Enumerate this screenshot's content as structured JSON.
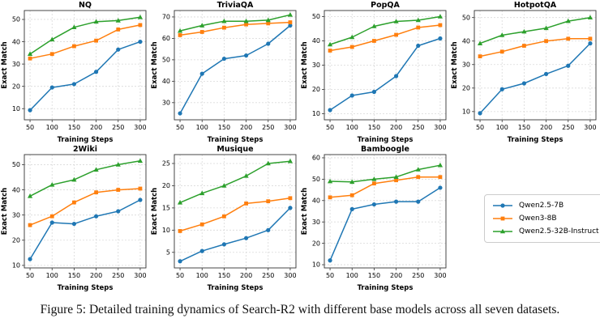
{
  "figure": {
    "caption": "Figure 5: Detailed training dynamics of Search-R2 with different base models across all seven datasets."
  },
  "legend": {
    "position": "bottom-right",
    "entries": [
      {
        "label": "Qwen2.5-7B",
        "color": "#1f77b4",
        "marker": "circle"
      },
      {
        "label": "Qwen3-8B",
        "color": "#ff7f0e",
        "marker": "square"
      },
      {
        "label": "Qwen2.5-32B-Instruct",
        "color": "#2ca02c",
        "marker": "triangle"
      }
    ]
  },
  "chart_data": [
    {
      "type": "line",
      "title": "NQ",
      "xlabel": "Training Steps",
      "ylabel": "Exact Match",
      "x": [
        50,
        100,
        150,
        200,
        250,
        300
      ],
      "xticks": [
        50,
        100,
        150,
        200,
        250,
        300
      ],
      "yticks": [
        10,
        20,
        30,
        40,
        50
      ],
      "xlim": [
        37,
        313
      ],
      "ylim": [
        5,
        54
      ],
      "grid": true,
      "series": [
        {
          "name": "Qwen2.5-7B",
          "color": "#1f77b4",
          "marker": "circle",
          "values": [
            9.3,
            19.5,
            21.0,
            26.5,
            36.5,
            40.0
          ]
        },
        {
          "name": "Qwen3-8B",
          "color": "#ff7f0e",
          "marker": "square",
          "values": [
            32.5,
            34.5,
            38.0,
            40.5,
            45.5,
            47.5
          ]
        },
        {
          "name": "Qwen2.5-32B-Instruct",
          "color": "#2ca02c",
          "marker": "triangle",
          "values": [
            34.5,
            41.0,
            46.5,
            49.0,
            49.5,
            51.0
          ]
        }
      ]
    },
    {
      "type": "line",
      "title": "TriviaQA",
      "xlabel": "Training Steps",
      "ylabel": "Exact Match",
      "x": [
        50,
        100,
        150,
        200,
        250,
        300
      ],
      "xticks": [
        50,
        100,
        150,
        200,
        250,
        300
      ],
      "yticks": [
        30,
        40,
        50,
        60,
        70
      ],
      "xlim": [
        37,
        313
      ],
      "ylim": [
        22,
        73
      ],
      "grid": true,
      "series": [
        {
          "name": "Qwen2.5-7B",
          "color": "#1f77b4",
          "marker": "circle",
          "values": [
            25.0,
            43.5,
            50.5,
            52.0,
            57.5,
            66.0
          ]
        },
        {
          "name": "Qwen3-8B",
          "color": "#ff7f0e",
          "marker": "square",
          "values": [
            61.5,
            63.0,
            65.0,
            66.5,
            67.0,
            67.5
          ]
        },
        {
          "name": "Qwen2.5-32B-Instruct",
          "color": "#2ca02c",
          "marker": "triangle",
          "values": [
            63.5,
            66.0,
            68.0,
            68.0,
            68.5,
            71.0
          ]
        }
      ]
    },
    {
      "type": "line",
      "title": "PopQA",
      "xlabel": "Training Steps",
      "ylabel": "Exact Match",
      "x": [
        50,
        100,
        150,
        200,
        250,
        300
      ],
      "xticks": [
        50,
        100,
        150,
        200,
        250,
        300
      ],
      "yticks": [
        10,
        20,
        30,
        40,
        50
      ],
      "xlim": [
        37,
        313
      ],
      "ylim": [
        7.5,
        52.5
      ],
      "grid": true,
      "series": [
        {
          "name": "Qwen2.5-7B",
          "color": "#1f77b4",
          "marker": "circle",
          "values": [
            11.5,
            17.5,
            19.0,
            25.5,
            38.0,
            41.0
          ]
        },
        {
          "name": "Qwen3-8B",
          "color": "#ff7f0e",
          "marker": "square",
          "values": [
            36.0,
            37.5,
            40.0,
            42.5,
            45.5,
            46.5
          ]
        },
        {
          "name": "Qwen2.5-32B-Instruct",
          "color": "#2ca02c",
          "marker": "triangle",
          "values": [
            38.5,
            41.5,
            46.0,
            48.0,
            48.5,
            50.0
          ]
        }
      ]
    },
    {
      "type": "line",
      "title": "HotpotQA",
      "xlabel": "Training Steps",
      "ylabel": "Exact Match",
      "x": [
        50,
        100,
        150,
        200,
        250,
        300
      ],
      "xticks": [
        50,
        100,
        150,
        200,
        250,
        300
      ],
      "yticks": [
        10,
        20,
        30,
        40,
        50
      ],
      "xlim": [
        37,
        313
      ],
      "ylim": [
        6.5,
        53
      ],
      "grid": true,
      "series": [
        {
          "name": "Qwen2.5-7B",
          "color": "#1f77b4",
          "marker": "circle",
          "values": [
            9.3,
            19.5,
            22.0,
            26.0,
            29.5,
            39.0
          ]
        },
        {
          "name": "Qwen3-8B",
          "color": "#ff7f0e",
          "marker": "square",
          "values": [
            33.5,
            35.5,
            38.0,
            40.0,
            41.0,
            41.0
          ]
        },
        {
          "name": "Qwen2.5-32B-Instruct",
          "color": "#2ca02c",
          "marker": "triangle",
          "values": [
            39.0,
            42.5,
            44.0,
            45.5,
            48.5,
            50.0
          ]
        }
      ]
    },
    {
      "type": "line",
      "title": "2Wiki",
      "xlabel": "Training Steps",
      "ylabel": "Exact Match",
      "x": [
        50,
        100,
        150,
        200,
        250,
        300
      ],
      "xticks": [
        50,
        100,
        150,
        200,
        250,
        300
      ],
      "yticks": [
        10,
        20,
        30,
        40,
        50
      ],
      "xlim": [
        37,
        313
      ],
      "ylim": [
        9,
        54
      ],
      "grid": true,
      "series": [
        {
          "name": "Qwen2.5-7B",
          "color": "#1f77b4",
          "marker": "circle",
          "values": [
            12.5,
            27.0,
            26.5,
            29.5,
            31.5,
            36.0
          ]
        },
        {
          "name": "Qwen3-8B",
          "color": "#ff7f0e",
          "marker": "square",
          "values": [
            26.0,
            29.5,
            35.0,
            39.0,
            40.0,
            40.5
          ]
        },
        {
          "name": "Qwen2.5-32B-Instruct",
          "color": "#2ca02c",
          "marker": "triangle",
          "values": [
            37.5,
            42.0,
            44.0,
            48.0,
            50.0,
            51.5
          ]
        }
      ]
    },
    {
      "type": "line",
      "title": "Musique",
      "xlabel": "Training Steps",
      "ylabel": "Exact Match",
      "x": [
        50,
        100,
        150,
        200,
        250,
        300
      ],
      "xticks": [
        50,
        100,
        150,
        200,
        250,
        300
      ],
      "yticks": [
        5,
        10,
        15,
        20,
        25
      ],
      "xlim": [
        37,
        313
      ],
      "ylim": [
        1.5,
        27
      ],
      "grid": true,
      "series": [
        {
          "name": "Qwen2.5-7B",
          "color": "#1f77b4",
          "marker": "circle",
          "values": [
            3.0,
            5.3,
            6.8,
            8.2,
            10.0,
            15.0
          ]
        },
        {
          "name": "Qwen3-8B",
          "color": "#ff7f0e",
          "marker": "square",
          "values": [
            9.8,
            11.3,
            13.1,
            16.0,
            16.5,
            17.2
          ]
        },
        {
          "name": "Qwen2.5-32B-Instruct",
          "color": "#2ca02c",
          "marker": "triangle",
          "values": [
            16.2,
            18.3,
            20.0,
            22.2,
            25.0,
            25.5
          ]
        }
      ]
    },
    {
      "type": "line",
      "title": "Bamboogle",
      "xlabel": "Training Steps",
      "ylabel": "Exact Match",
      "x": [
        50,
        100,
        150,
        200,
        250,
        300
      ],
      "xticks": [
        50,
        100,
        150,
        200,
        250,
        300
      ],
      "yticks": [
        10,
        20,
        30,
        40,
        50,
        60
      ],
      "xlim": [
        37,
        313
      ],
      "ylim": [
        8.5,
        61.5
      ],
      "grid": true,
      "series": [
        {
          "name": "Qwen2.5-7B",
          "color": "#1f77b4",
          "marker": "circle",
          "values": [
            12.0,
            36.0,
            38.2,
            39.5,
            39.5,
            46.0
          ]
        },
        {
          "name": "Qwen3-8B",
          "color": "#ff7f0e",
          "marker": "square",
          "values": [
            41.5,
            42.5,
            48.0,
            49.5,
            51.0,
            51.0
          ]
        },
        {
          "name": "Qwen2.5-32B-Instruct",
          "color": "#2ca02c",
          "marker": "triangle",
          "values": [
            49.0,
            48.7,
            50.0,
            51.0,
            54.5,
            56.5
          ]
        }
      ]
    }
  ]
}
